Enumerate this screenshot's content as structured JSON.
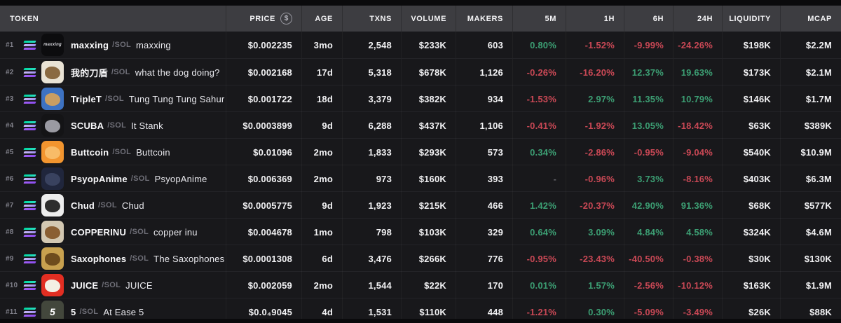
{
  "colors": {
    "positive": "#3C9E73",
    "negative": "#C94855",
    "neutral": "#62626A"
  },
  "table": {
    "columns": [
      {
        "label": "TOKEN"
      },
      {
        "label": "PRICE",
        "icon": "dollar-circle-icon"
      },
      {
        "label": "AGE"
      },
      {
        "label": "TXNS"
      },
      {
        "label": "VOLUME"
      },
      {
        "label": "MAKERS"
      },
      {
        "label": "5M"
      },
      {
        "label": "1H"
      },
      {
        "label": "6H"
      },
      {
        "label": "24H"
      },
      {
        "label": "LIQUIDITY"
      },
      {
        "label": "MCAP"
      }
    ],
    "rows": [
      {
        "rank": "#1",
        "symbol": "maxxing",
        "chain": "/SOL",
        "name": "maxxing",
        "price": "$0.002235",
        "age": "3mo",
        "txns": "2,548",
        "volume": "$233K",
        "makers": "603",
        "m5": "0.80%",
        "h1": "-1.52%",
        "h6": "-9.99%",
        "h24": "-24.26%",
        "liquidity": "$198K",
        "mcap": "$2.2M",
        "avatar": {
          "bg": "#0c0c0e",
          "text": "maxxing",
          "textColor": "#d9d9df"
        }
      },
      {
        "rank": "#2",
        "symbol": "我的刀盾",
        "chain": "/SOL",
        "name": "what the dog doing?",
        "price": "$0.002168",
        "age": "17d",
        "txns": "5,318",
        "volume": "$678K",
        "makers": "1,126",
        "m5": "-0.26%",
        "h1": "-16.20%",
        "h6": "12.37%",
        "h24": "19.63%",
        "liquidity": "$173K",
        "mcap": "$2.1M",
        "avatar": {
          "bg": "#e9e3d5",
          "blob": "#8a6a42"
        }
      },
      {
        "rank": "#3",
        "symbol": "TripleT",
        "chain": "/SOL",
        "name": "Tung Tung Tung Sahur",
        "price": "$0.001722",
        "age": "18d",
        "txns": "3,379",
        "volume": "$382K",
        "makers": "934",
        "m5": "-1.53%",
        "h1": "2.97%",
        "h6": "11.35%",
        "h24": "10.79%",
        "liquidity": "$146K",
        "mcap": "$1.7M",
        "avatar": {
          "bg": "#3d72c2",
          "blob": "#c99e62"
        }
      },
      {
        "rank": "#4",
        "symbol": "SCUBA",
        "chain": "/SOL",
        "name": "It Stank",
        "price": "$0.0003899",
        "age": "9d",
        "txns": "6,288",
        "volume": "$437K",
        "makers": "1,106",
        "m5": "-0.41%",
        "h1": "-1.92%",
        "h6": "13.05%",
        "h24": "-18.42%",
        "liquidity": "$63K",
        "mcap": "$389K",
        "avatar": {
          "bg": "#141416",
          "blob": "#9a9aa2"
        }
      },
      {
        "rank": "#5",
        "symbol": "Buttcoin",
        "chain": "/SOL",
        "name": "Buttcoin",
        "price": "$0.01096",
        "age": "2mo",
        "txns": "1,833",
        "volume": "$293K",
        "makers": "573",
        "m5": "0.34%",
        "h1": "-2.86%",
        "h6": "-0.95%",
        "h24": "-9.04%",
        "liquidity": "$540K",
        "mcap": "$10.9M",
        "avatar": {
          "bg": "#f2952f",
          "blob": "#f8bc68"
        }
      },
      {
        "rank": "#6",
        "symbol": "PsyopAnime",
        "chain": "/SOL",
        "name": "PsyopAnime",
        "price": "$0.006369",
        "age": "2mo",
        "txns": "973",
        "volume": "$160K",
        "makers": "393",
        "m5": "-",
        "h1": "-0.96%",
        "h6": "3.73%",
        "h24": "-8.16%",
        "liquidity": "$403K",
        "mcap": "$6.3M",
        "avatar": {
          "bg": "#20263c",
          "blob": "#39425f"
        }
      },
      {
        "rank": "#7",
        "symbol": "Chud",
        "chain": "/SOL",
        "name": "Chud",
        "price": "$0.0005775",
        "age": "9d",
        "txns": "1,923",
        "volume": "$215K",
        "makers": "466",
        "m5": "1.42%",
        "h1": "-20.37%",
        "h6": "42.90%",
        "h24": "91.36%",
        "liquidity": "$68K",
        "mcap": "$577K",
        "avatar": {
          "bg": "#ededed",
          "blob": "#2e2e2e"
        }
      },
      {
        "rank": "#8",
        "symbol": "COPPERINU",
        "chain": "/SOL",
        "name": "copper inu",
        "price": "$0.004678",
        "age": "1mo",
        "txns": "798",
        "volume": "$103K",
        "makers": "329",
        "m5": "0.64%",
        "h1": "3.09%",
        "h6": "4.84%",
        "h24": "4.58%",
        "liquidity": "$324K",
        "mcap": "$4.6M",
        "avatar": {
          "bg": "#d3c8b2",
          "blob": "#8a5f33"
        }
      },
      {
        "rank": "#9",
        "symbol": "Saxophones",
        "chain": "/SOL",
        "name": "The Saxophones getti",
        "price": "$0.0001308",
        "age": "6d",
        "txns": "3,476",
        "volume": "$266K",
        "makers": "776",
        "m5": "-0.95%",
        "h1": "-23.43%",
        "h6": "-40.50%",
        "h24": "-0.38%",
        "liquidity": "$30K",
        "mcap": "$130K",
        "avatar": {
          "bg": "#c8a14f",
          "blob": "#6e4c1d"
        }
      },
      {
        "rank": "#10",
        "symbol": "JUICE",
        "chain": "/SOL",
        "name": "JUICE",
        "price": "$0.002059",
        "age": "2mo",
        "txns": "1,544",
        "volume": "$22K",
        "makers": "170",
        "m5": "0.01%",
        "h1": "1.57%",
        "h6": "-2.56%",
        "h24": "-10.12%",
        "liquidity": "$163K",
        "mcap": "$1.9M",
        "avatar": {
          "bg": "#e22e22",
          "blob": "#f3efe4"
        }
      },
      {
        "rank": "#11",
        "symbol": "5",
        "chain": "/SOL",
        "name": "At Ease 5",
        "price": "$0.0₄9045",
        "age": "4d",
        "txns": "1,531",
        "volume": "$110K",
        "makers": "448",
        "m5": "-1.21%",
        "h1": "0.30%",
        "h6": "-5.09%",
        "h24": "-3.49%",
        "liquidity": "$26K",
        "mcap": "$88K",
        "avatar": {
          "bg": "#43473c",
          "text": "5",
          "textColor": "#ffffff"
        }
      }
    ]
  }
}
